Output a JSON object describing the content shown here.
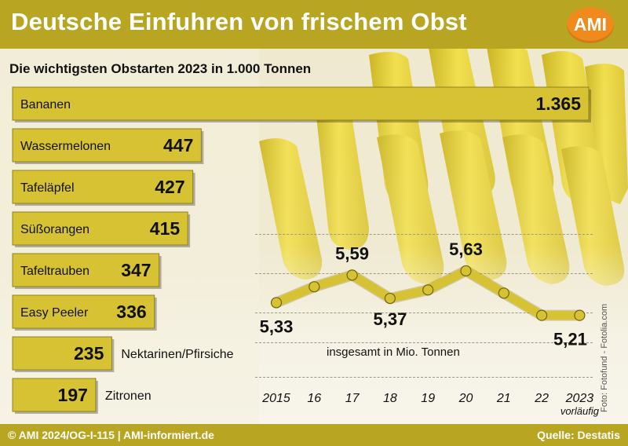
{
  "header": {
    "title": "Deutsche Einfuhren von frischem Obst",
    "logo_text": "AMI"
  },
  "footer": {
    "left": "© AMI 2024/OG-I-115 | AMI-informiert.de",
    "right": "Quelle: Destatis"
  },
  "photo_credit": "Foto: Fotofund - Fotolia.com",
  "colors": {
    "brand": "#b8a622",
    "bar": "#d6c232",
    "logo": "#f08a1c",
    "line": "#d6c232"
  },
  "chart_data": [
    {
      "type": "bar",
      "title": "Die wichtigsten Obstarten 2023 in 1.000 Tonnen",
      "categories": [
        "Bananen",
        "Wassermelonen",
        "Tafeläpfel",
        "Süßorangen",
        "Tafeltrauben",
        "Easy Peeler",
        "Nektarinen/Pfirsiche",
        "Zitronen"
      ],
      "values": [
        1365,
        447,
        427,
        415,
        347,
        336,
        235,
        197
      ],
      "value_labels": [
        "1.365",
        "447",
        "427",
        "415",
        "347",
        "336",
        "235",
        "197"
      ],
      "orientation": "horizontal"
    },
    {
      "type": "line",
      "title": "insgesamt in Mio. Tonnen",
      "x": [
        "2015",
        "16",
        "17",
        "18",
        "19",
        "20",
        "21",
        "22",
        "2023"
      ],
      "x_note": "vorläufig",
      "values": [
        5.33,
        5.48,
        5.59,
        5.37,
        5.45,
        5.63,
        5.42,
        5.21,
        5.21
      ],
      "point_labels": [
        {
          "index": 0,
          "text": "5,33"
        },
        {
          "index": 2,
          "text": "5,59"
        },
        {
          "index": 3,
          "text": "5,37"
        },
        {
          "index": 5,
          "text": "5,63"
        },
        {
          "index": 8,
          "text": "5,21"
        }
      ],
      "grid": true
    }
  ]
}
